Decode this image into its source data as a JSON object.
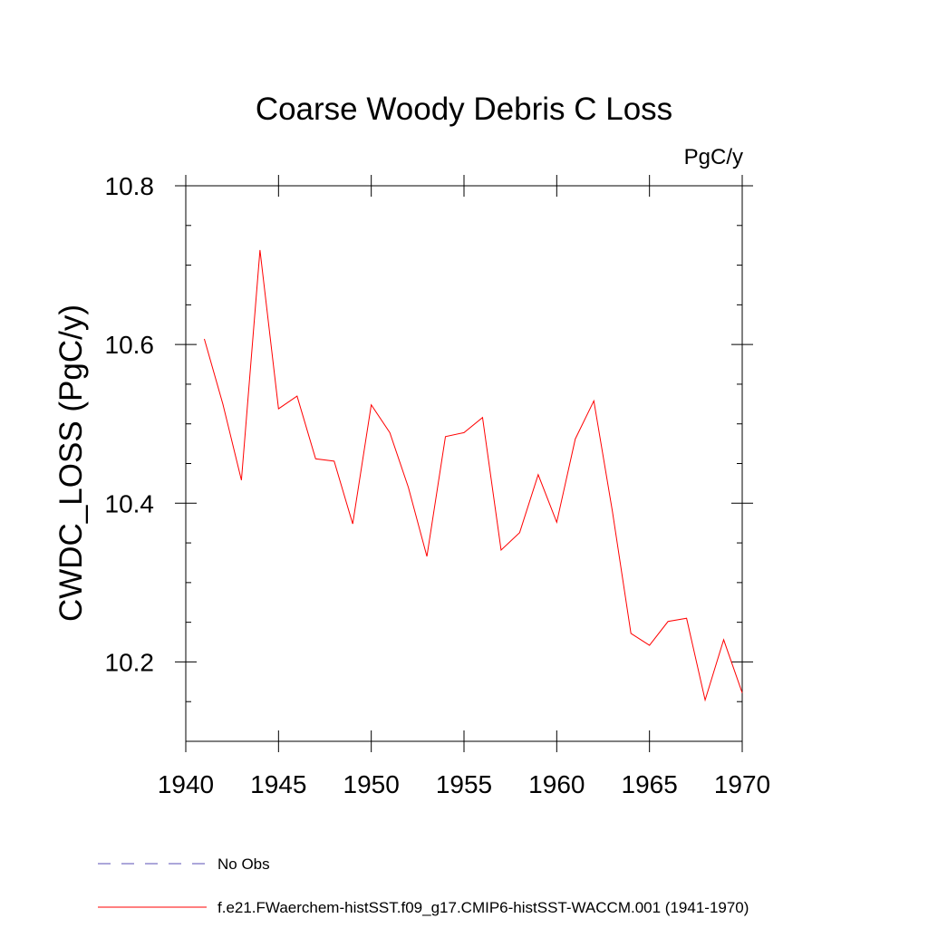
{
  "chart_data": {
    "type": "line",
    "title": "Coarse Woody Debris C Loss",
    "units_label": "PgC/y",
    "xlabel": "",
    "ylabel": "CWDC_LOSS  (PgC/y)",
    "xlim": [
      1940,
      1970
    ],
    "ylim": [
      10.1,
      10.8
    ],
    "xticks": [
      1940,
      1945,
      1950,
      1955,
      1960,
      1965,
      1970
    ],
    "xtick_labels": [
      "1940",
      "1945",
      "1950",
      "1955",
      "1960",
      "1965",
      "1970"
    ],
    "yticks": [
      10.2,
      10.4,
      10.6,
      10.8
    ],
    "ytick_labels": [
      "10.2",
      "10.4",
      "10.6",
      "10.8"
    ],
    "y_minor_step": 0.05,
    "grid": false,
    "legend_position": "bottom",
    "series": [
      {
        "name": "f.e21.FWaerchem-histSST.f09_g17.CMIP6-histSST-WACCM.001 (1941-1970)",
        "color": "#ff0000",
        "style": "solid",
        "x": [
          1941,
          1942,
          1943,
          1944,
          1945,
          1946,
          1947,
          1948,
          1949,
          1950,
          1951,
          1952,
          1953,
          1954,
          1955,
          1956,
          1957,
          1958,
          1959,
          1960,
          1961,
          1962,
          1963,
          1964,
          1965,
          1966,
          1967,
          1968,
          1969,
          1970
        ],
        "y": [
          10.607,
          10.525,
          10.429,
          10.719,
          10.519,
          10.535,
          10.456,
          10.453,
          10.374,
          10.524,
          10.489,
          10.42,
          10.333,
          10.484,
          10.489,
          10.508,
          10.341,
          10.363,
          10.436,
          10.376,
          10.481,
          10.529,
          10.39,
          10.236,
          10.221,
          10.251,
          10.255,
          10.152,
          10.228,
          10.161
        ]
      }
    ],
    "legend": [
      {
        "label": "No Obs",
        "color": "#5a4fb5",
        "style": "dashed"
      },
      {
        "label": "f.e21.FWaerchem-histSST.f09_g17.CMIP6-histSST-WACCM.001 (1941-1970)",
        "color": "#ff0000",
        "style": "solid"
      }
    ]
  }
}
